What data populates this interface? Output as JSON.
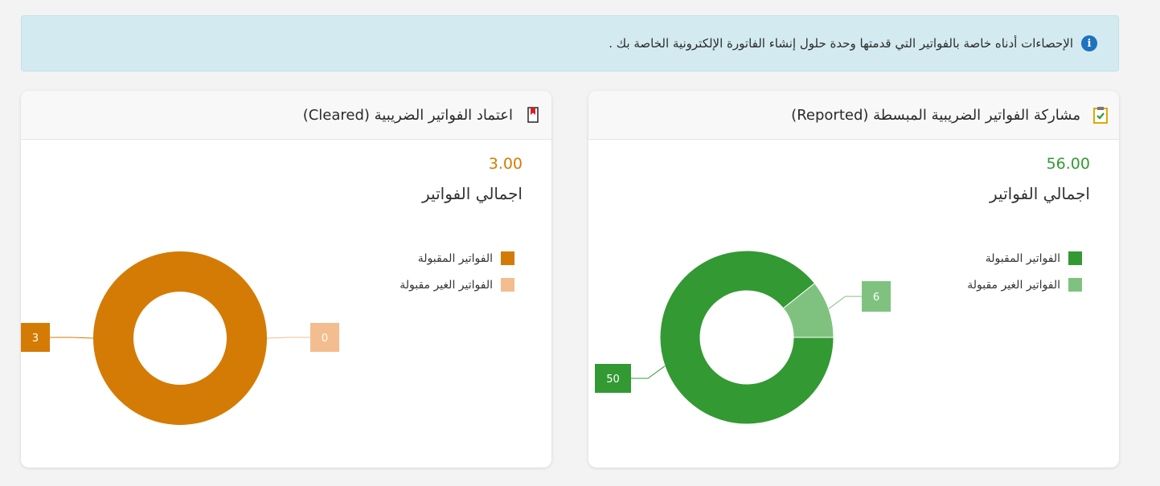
{
  "info": {
    "text": "الإحصاءات أدناه خاصة بالفواتير التي قدمتها وحدة حلول إنشاء الفاتورة الإلكترونية الخاصة بك ."
  },
  "cards": [
    {
      "title": "مشاركة الفواتير الضريبية المبسطة (Reported)",
      "icon": "clipboard-check-icon",
      "total_value": "56.00",
      "total_label": "اجمالي الفواتير",
      "accent": "#339933"
    },
    {
      "title": "اعتماد الفواتير الضريبية (Cleared)",
      "icon": "bookmark-icon",
      "total_value": "3.00",
      "total_label": "اجمالي الفواتير",
      "accent": "#d47b05"
    }
  ],
  "chart_data": [
    {
      "type": "pie",
      "categories": [
        "الفواتير المقبولة",
        "الفواتير الغير مقبولة"
      ],
      "values": [
        50,
        6
      ],
      "colors": [
        "#339933",
        "#7fc27f"
      ],
      "legend_position": "top-right"
    },
    {
      "type": "pie",
      "categories": [
        "الفواتير المقبولة",
        "الفواتير الغير مقبولة"
      ],
      "values": [
        3,
        0
      ],
      "colors": [
        "#d47b05",
        "#f3bd8f"
      ],
      "legend_position": "top-right"
    }
  ]
}
